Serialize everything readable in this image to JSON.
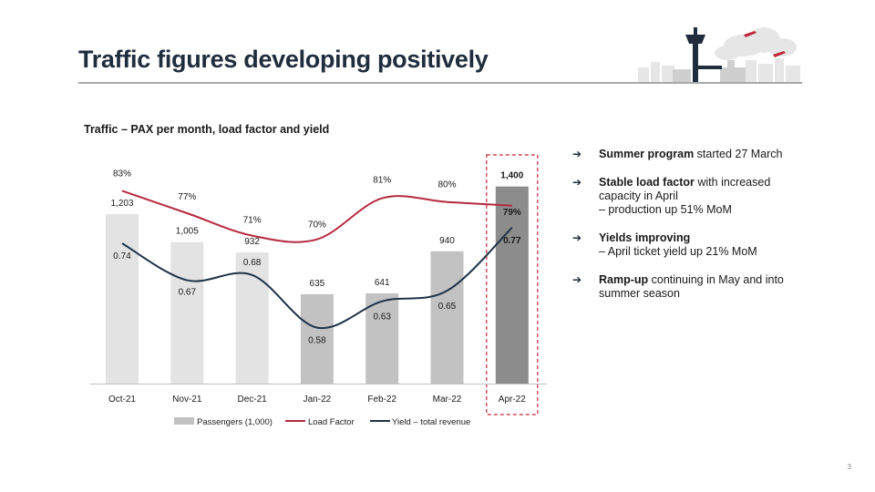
{
  "slide": {
    "title": "Traffic figures developing positively",
    "page_number": "3"
  },
  "bullets": [
    {
      "bold": "Summer program",
      "text": " started 27 March",
      "sub": []
    },
    {
      "bold": "Stable load factor",
      "text": " with increased capacity in April",
      "sub": [
        "– production up 51% MoM"
      ]
    },
    {
      "bold": "Yields improving",
      "text": "",
      "sub": [
        "– April ticket yield up 21% MoM"
      ]
    },
    {
      "bold": "Ramp-up",
      "text": " continuing in May and into summer season",
      "sub": []
    }
  ],
  "icons": {
    "bullet_arrow": "arrow-right-icon",
    "illustration": "airport-skyline-icon"
  },
  "chart_data": {
    "type": "bar",
    "title": "Traffic – PAX per month, load factor and yield",
    "categories": [
      "Oct-21",
      "Nov-21",
      "Dec-21",
      "Jan-22",
      "Feb-22",
      "Mar-22",
      "Apr-22"
    ],
    "series": [
      {
        "name": "Passengers (1,000)",
        "kind": "bar",
        "values": [
          1203,
          1005,
          932,
          635,
          641,
          940,
          1400
        ],
        "labels": [
          "1,203",
          "1,005",
          "932",
          "635",
          "641",
          "940",
          "1,400"
        ]
      },
      {
        "name": "Load Factor",
        "kind": "line",
        "values": [
          83,
          77,
          71,
          70,
          81,
          80,
          79
        ],
        "labels": [
          "83%",
          "77%",
          "71%",
          "70%",
          "81%",
          "80%",
          "79%"
        ]
      },
      {
        "name": "Yield – total revenue",
        "kind": "line",
        "values": [
          0.74,
          0.67,
          0.68,
          0.58,
          0.63,
          0.65,
          0.77
        ],
        "labels": [
          "0.74",
          "0.67",
          "0.68",
          "0.58",
          "0.63",
          "0.65",
          "0.77"
        ]
      }
    ],
    "highlight_category": "Apr-22",
    "colors": {
      "bars": [
        "#e3e3e3",
        "#e3e3e3",
        "#e3e3e3",
        "#c2c2c2",
        "#c2c2c2",
        "#c2c2c2",
        "#8c8c8c"
      ],
      "legend_bar": "#c2c2c2",
      "load_factor": "#b5293e",
      "yield": "#1f3347",
      "highlight_box": "#c0273a"
    },
    "legend_position": "bottom",
    "grid": false
  }
}
